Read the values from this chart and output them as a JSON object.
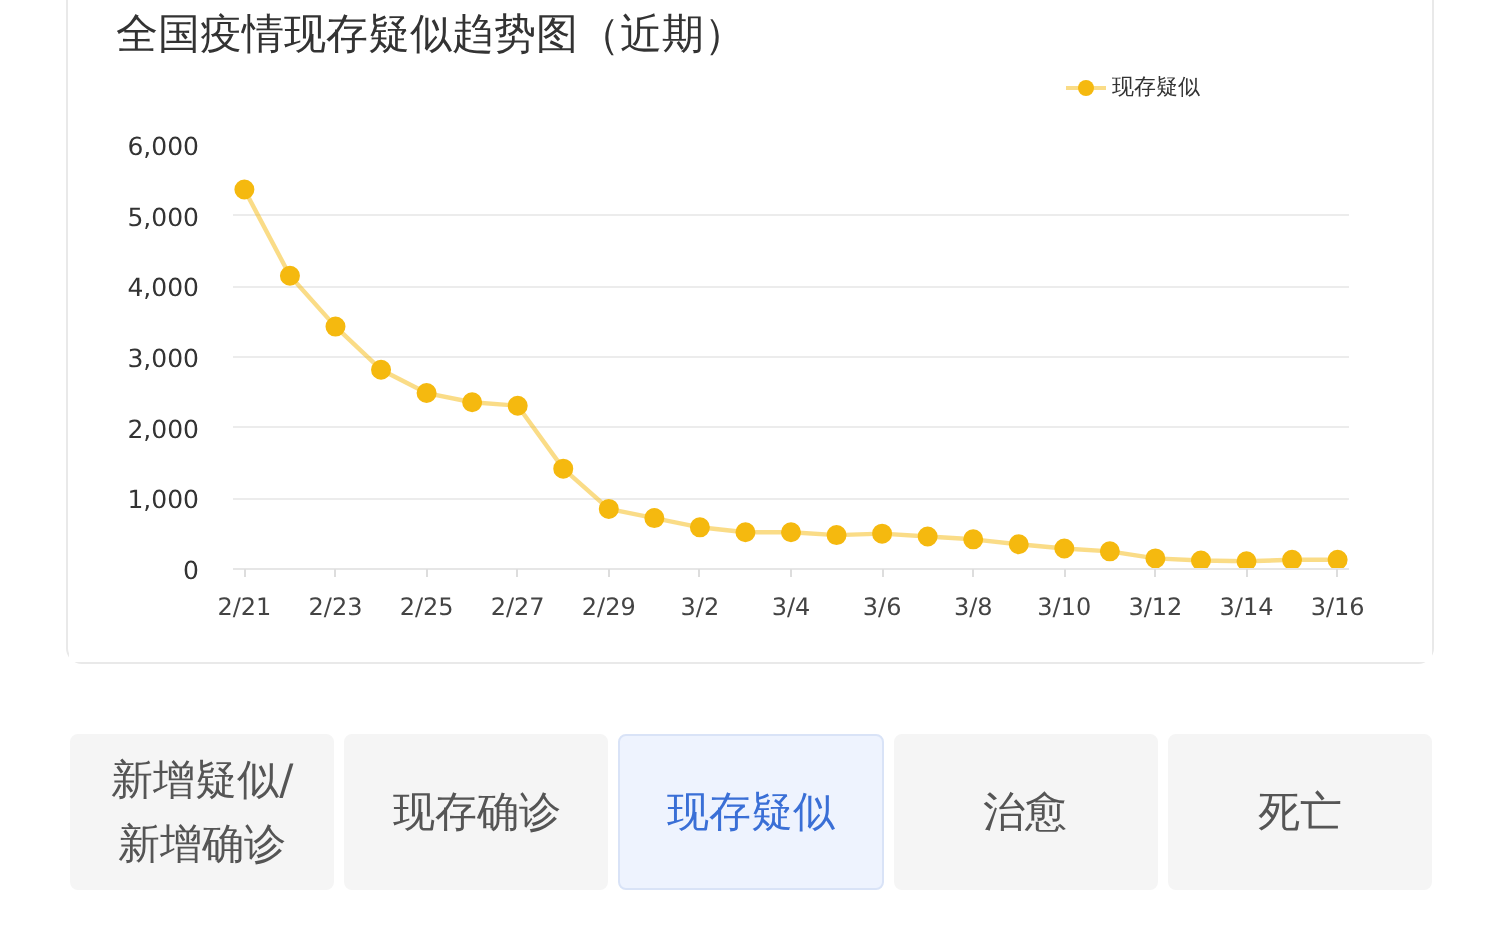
{
  "chart_data": {
    "type": "line",
    "title": "全国疫情现存疑似趋势图（近期）",
    "categories": [
      "2/21",
      null,
      "2/23",
      null,
      "2/25",
      null,
      "2/27",
      null,
      "2/29",
      null,
      "3/2",
      null,
      "3/4",
      null,
      "3/6",
      null,
      "3/8",
      null,
      "3/10",
      null,
      "3/12",
      null,
      "3/14",
      null,
      "3/16"
    ],
    "series": [
      {
        "name": "现存疑似",
        "color": "#f5b90f",
        "values": [
          5370,
          4150,
          3430,
          2820,
          2490,
          2360,
          2310,
          1420,
          850,
          720,
          590,
          520,
          520,
          480,
          500,
          460,
          420,
          350,
          290,
          250,
          150,
          120,
          110,
          130,
          130
        ]
      }
    ],
    "ylim": [
      0,
      6000
    ],
    "yticks": [
      0,
      {
        "value": 1000,
        "label": "1,000"
      },
      {
        "value": 2000,
        "label": "2,000"
      },
      {
        "value": 3000,
        "label": "3,000"
      },
      {
        "value": 4000,
        "label": "4,000"
      },
      {
        "value": 5000,
        "label": "5,000"
      },
      {
        "value": 6000,
        "label": "6,000"
      }
    ],
    "grid": "y",
    "legend": "top right",
    "marker": "circle",
    "line_style": "solid",
    "annotations": [
      "新增疑似/新增确诊",
      "现存确诊",
      "现存疑似",
      "治愈",
      "死亡"
    ]
  }
}
